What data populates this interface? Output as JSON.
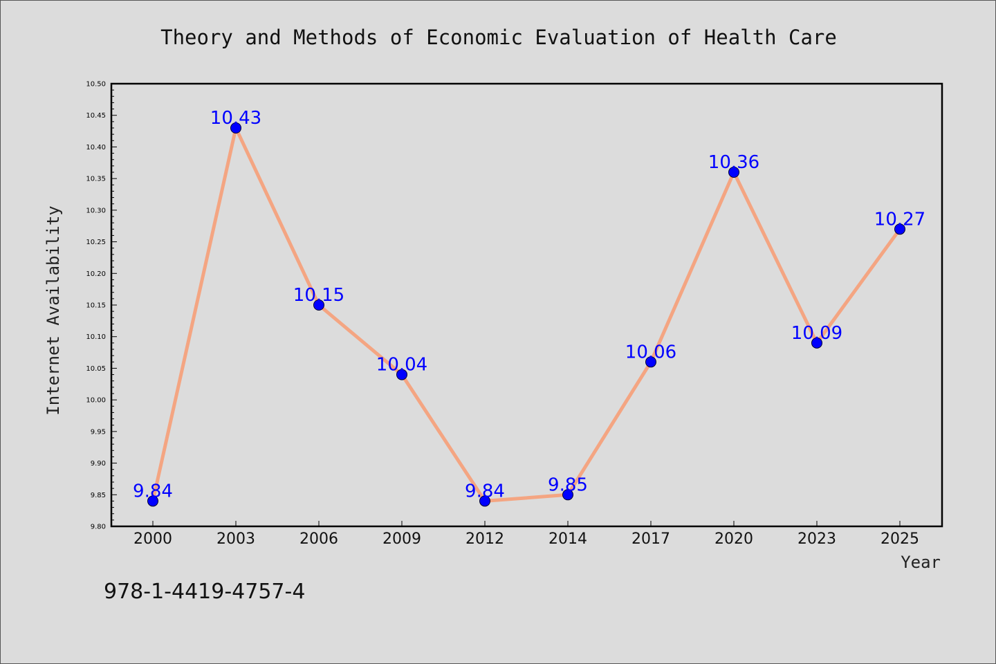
{
  "chart_data": {
    "type": "line",
    "title": "Theory and Methods of Economic Evaluation of Health Care",
    "xlabel": "Year",
    "ylabel": "Internet Availability",
    "x": [
      "2000",
      "2003",
      "2006",
      "2009",
      "2012",
      "2014",
      "2017",
      "2020",
      "2023",
      "2025"
    ],
    "series": [
      {
        "values": [
          9.84,
          10.43,
          10.15,
          10.04,
          9.84,
          9.85,
          10.06,
          10.36,
          10.09,
          10.27
        ],
        "value_labels": [
          "9.84",
          "10.43",
          "10.15",
          "10.04",
          "9.84",
          "9.85",
          "10.06",
          "10.36",
          "10.09",
          "10.27"
        ],
        "line_color": "#f4a582",
        "marker_color": "#0000ff"
      }
    ],
    "ylim": [
      9.8,
      10.5
    ],
    "yticks": [
      "9.80",
      "9.85",
      "9.90",
      "9.95",
      "10.00",
      "10.05",
      "10.10",
      "10.15",
      "10.20",
      "10.25",
      "10.30",
      "10.35",
      "10.40",
      "10.45",
      "10.50"
    ],
    "grid": false,
    "legend": "none"
  },
  "footer": {
    "isbn": "978-1-4419-4757-4"
  }
}
